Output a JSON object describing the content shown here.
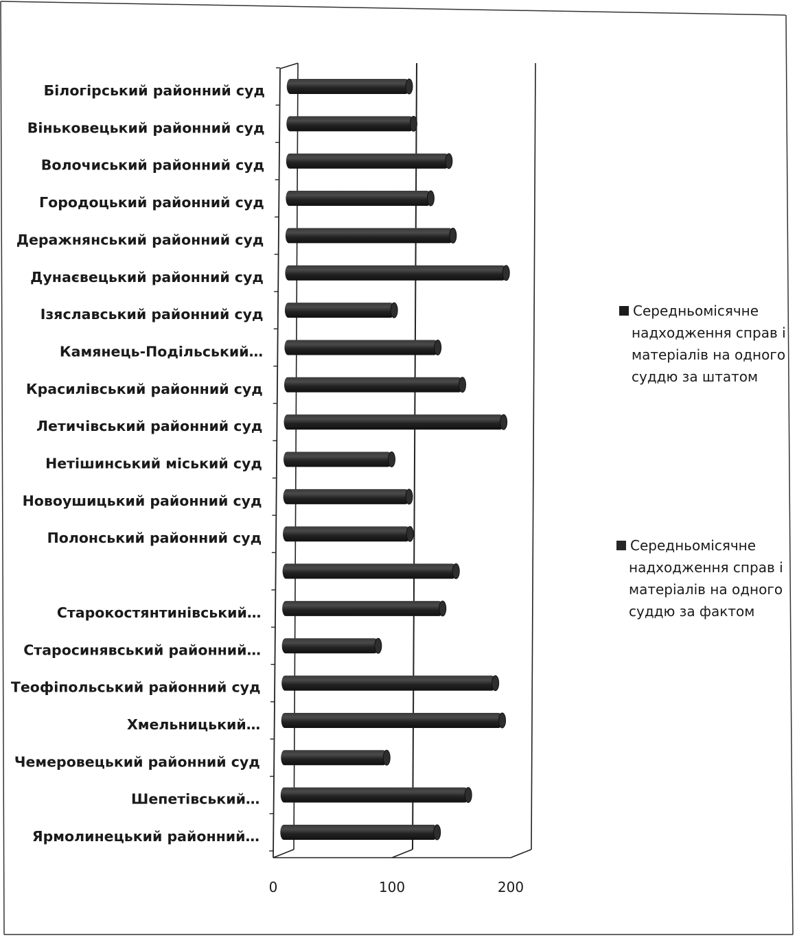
{
  "chart_data": {
    "type": "bar",
    "orientation": "horizontal",
    "style": "3d-cylinder",
    "categories": [
      "Білогірський районний суд",
      "Віньковецький районний суд",
      "Волочиський районний суд",
      "Городоцький районний суд",
      "Деражнянський районний суд",
      "Дунаєвецький районний суд",
      "Ізяславський районний суд",
      "Камянець-Подільський…",
      "Красилівський районний суд",
      "Летичівський районний суд",
      "Нетішинський міський суд",
      "Новоушицький районний суд",
      "Полонський районний суд",
      "",
      "Старокостянтинівський…",
      "Старосинявський районний…",
      "Теофіпольський районний суд",
      "Хмельницький…",
      "Чемеровецький районний суд",
      "Шепетівський…",
      "Ярмолинецький районний…"
    ],
    "series": [
      {
        "name": "Середньомісячне надходження справ і матеріалів на одного суддю за штатом",
        "color": "#1c1c1c",
        "values": [
          null,
          null,
          null,
          null,
          null,
          null,
          null,
          null,
          null,
          null,
          null,
          null,
          null,
          null,
          null,
          null,
          null,
          null,
          null,
          null,
          null
        ]
      },
      {
        "name": "Середньомісячне надходження справ і матеріалів на одного суддю за фактом",
        "color": "#262626",
        "values": [
          103,
          107,
          137,
          122,
          141,
          186,
          92,
          129,
          150,
          185,
          91,
          106,
          107,
          146,
          135,
          81,
          180,
          186,
          89,
          158,
          132
        ]
      }
    ],
    "xlim": [
      0,
      200
    ],
    "xticks": [
      "0",
      "100",
      "200"
    ],
    "grid": true,
    "legend": "right"
  }
}
